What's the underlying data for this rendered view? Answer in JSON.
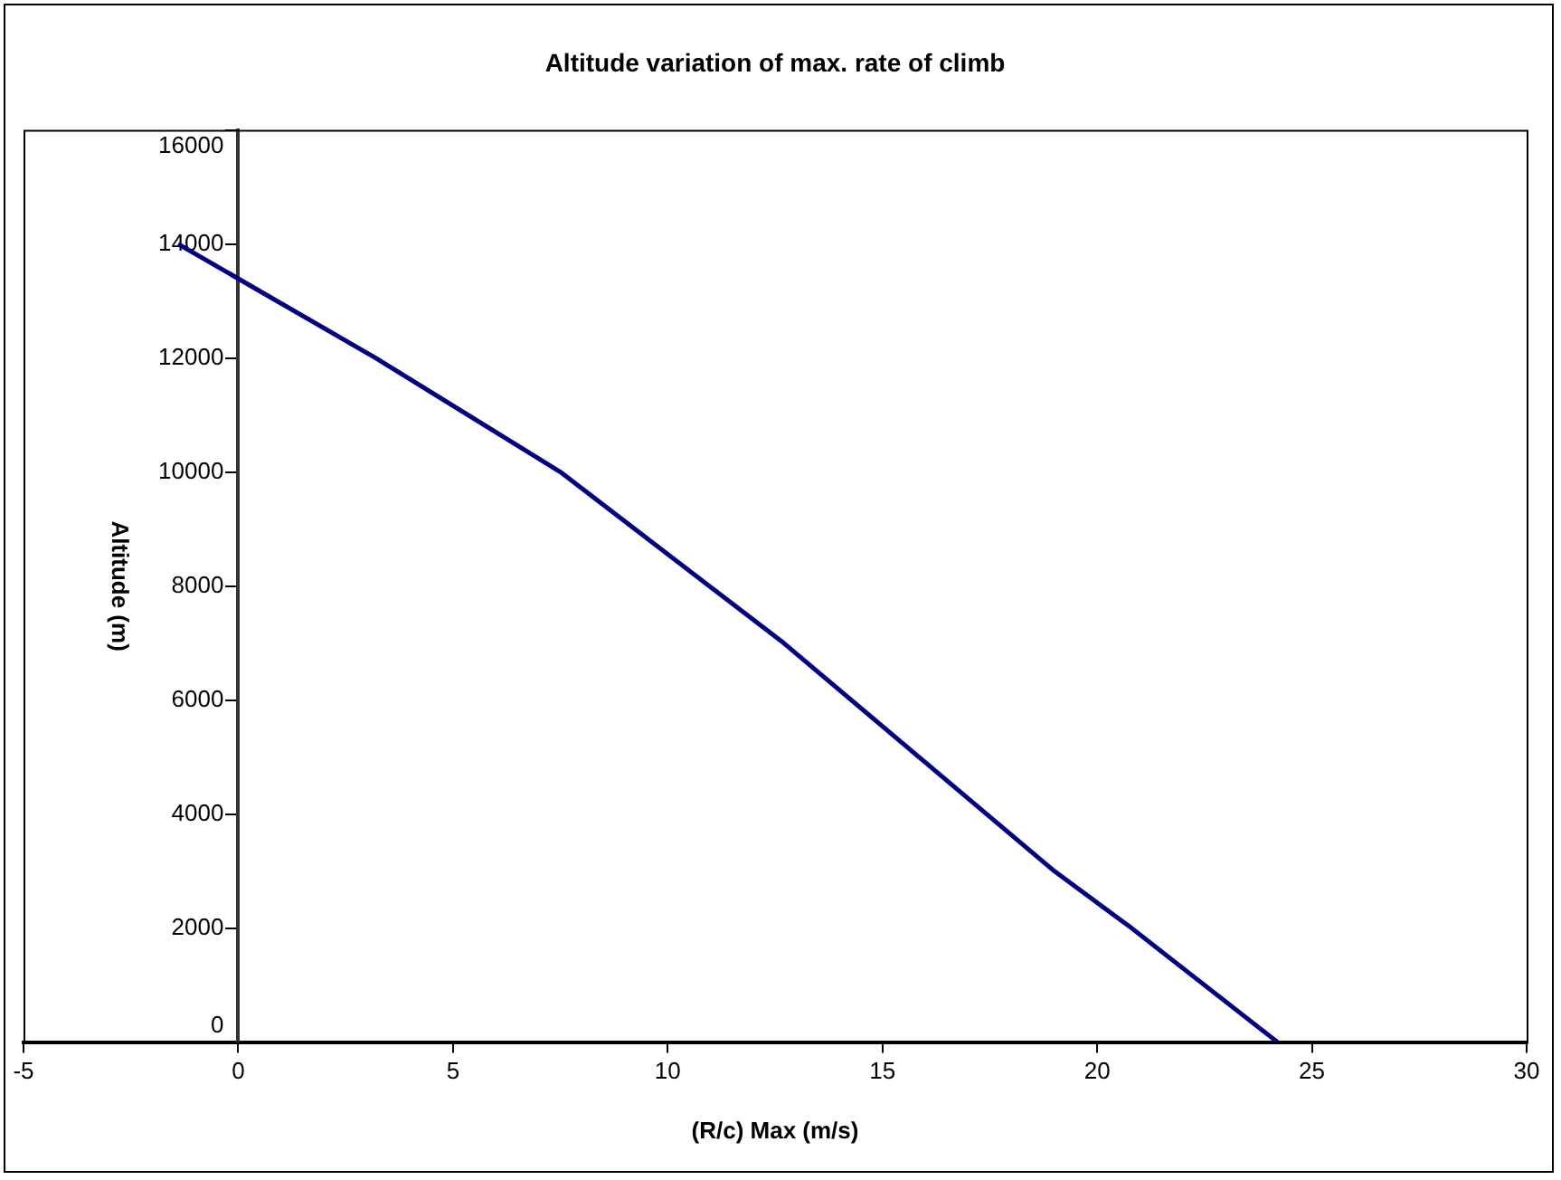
{
  "chart_data": {
    "type": "line",
    "title": "Altitude variation of max. rate of climb",
    "xlabel": "(R/c) Max (m/s)",
    "ylabel": "Altitude (m)",
    "x": [
      -1.4,
      3.2,
      7.5,
      12.7,
      19,
      20.8,
      24.2
    ],
    "series": [
      {
        "color": "#000080",
        "values": [
          14000,
          12000,
          10000,
          7000,
          3000,
          2000,
          0
        ]
      }
    ],
    "xlim": [
      -5,
      30
    ],
    "xticks": [
      -5,
      0,
      5,
      10,
      15,
      20,
      25,
      30
    ],
    "ylim": [
      0,
      16000
    ],
    "yticks": [
      0,
      2000,
      4000,
      6000,
      8000,
      10000,
      12000,
      14000,
      16000
    ],
    "grid": false,
    "legend": false,
    "marker": "none",
    "line_style": "solid"
  }
}
